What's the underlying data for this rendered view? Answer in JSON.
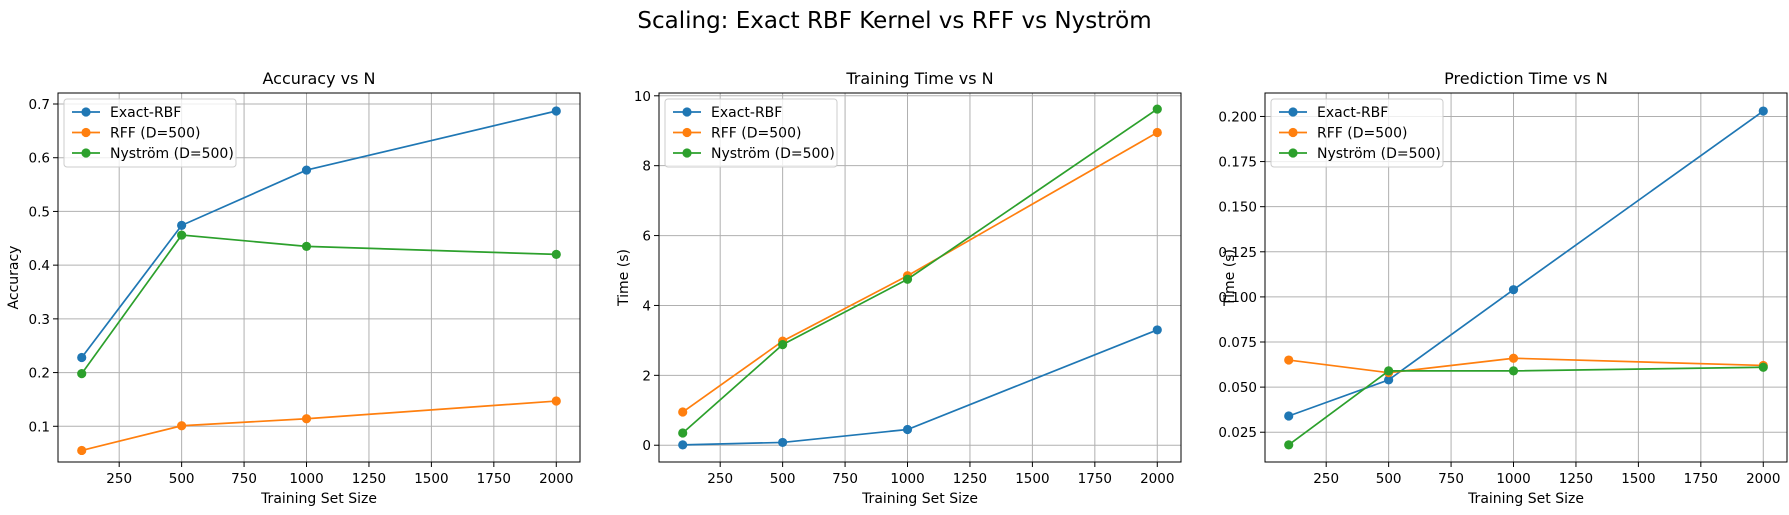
{
  "figure": {
    "title": "Scaling: Exact RBF Kernel vs RFF vs Nyström"
  },
  "colors": {
    "Exact-RBF": "#1f77b4",
    "RFF (D=500)": "#ff7f0e",
    "Nyström (D=500)": "#2ca02c"
  },
  "chart_data": [
    {
      "type": "line",
      "title": "Accuracy vs N",
      "xlabel": "Training Set Size",
      "ylabel": "Accuracy",
      "xlim": [
        5,
        2095
      ],
      "ylim": [
        0.0335,
        0.7205
      ],
      "xticks": [
        250,
        500,
        750,
        1000,
        1250,
        1500,
        1750,
        2000
      ],
      "xtick_labels": [
        "250",
        "500",
        "750",
        "1000",
        "1250",
        "1500",
        "1750",
        "2000"
      ],
      "yticks": [
        0.1,
        0.2,
        0.3,
        0.4,
        0.5,
        0.6,
        0.7
      ],
      "ytick_labels": [
        "0.1",
        "0.2",
        "0.3",
        "0.4",
        "0.5",
        "0.6",
        "0.7"
      ],
      "grid": true,
      "legend": "upper left",
      "x": [
        100,
        500,
        1000,
        2000
      ],
      "series": [
        {
          "name": "Exact-RBF",
          "values": [
            0.228,
            0.474,
            0.577,
            0.687
          ]
        },
        {
          "name": "RFF (D=500)",
          "values": [
            0.055,
            0.101,
            0.114,
            0.147
          ]
        },
        {
          "name": "Nyström (D=500)",
          "values": [
            0.198,
            0.456,
            0.435,
            0.42
          ]
        }
      ]
    },
    {
      "type": "line",
      "title": "Training Time vs N",
      "xlabel": "Training Set Size",
      "ylabel": "Time (s)",
      "xlim": [
        5,
        2095
      ],
      "ylim": [
        -0.48,
        10.08
      ],
      "xticks": [
        250,
        500,
        750,
        1000,
        1250,
        1500,
        1750,
        2000
      ],
      "xtick_labels": [
        "250",
        "500",
        "750",
        "1000",
        "1250",
        "1500",
        "1750",
        "2000"
      ],
      "yticks": [
        0,
        2,
        4,
        6,
        8,
        10
      ],
      "ytick_labels": [
        "0",
        "2",
        "4",
        "6",
        "8",
        "10"
      ],
      "grid": true,
      "legend": "upper left",
      "x": [
        100,
        500,
        1000,
        2000
      ],
      "series": [
        {
          "name": "Exact-RBF",
          "values": [
            0.01,
            0.08,
            0.45,
            3.3
          ]
        },
        {
          "name": "RFF (D=500)",
          "values": [
            0.95,
            2.98,
            4.85,
            8.95
          ]
        },
        {
          "name": "Nyström (D=500)",
          "values": [
            0.35,
            2.88,
            4.75,
            9.62
          ]
        }
      ]
    },
    {
      "type": "line",
      "title": "Prediction Time vs N",
      "xlabel": "Training Set Size",
      "ylabel": "Time (s)",
      "xlim": [
        5,
        2095
      ],
      "ylim": [
        0.0085,
        0.213
      ],
      "xticks": [
        250,
        500,
        750,
        1000,
        1250,
        1500,
        1750,
        2000
      ],
      "xtick_labels": [
        "250",
        "500",
        "750",
        "1000",
        "1250",
        "1500",
        "1750",
        "2000"
      ],
      "yticks": [
        0.025,
        0.05,
        0.075,
        0.1,
        0.125,
        0.15,
        0.175,
        0.2
      ],
      "ytick_labels": [
        "0.025",
        "0.050",
        "0.075",
        "0.100",
        "0.125",
        "0.150",
        "0.175",
        "0.200"
      ],
      "grid": true,
      "legend": "upper left",
      "x": [
        100,
        500,
        1000,
        2000
      ],
      "series": [
        {
          "name": "Exact-RBF",
          "values": [
            0.034,
            0.054,
            0.104,
            0.203
          ]
        },
        {
          "name": "RFF (D=500)",
          "values": [
            0.065,
            0.058,
            0.066,
            0.062
          ]
        },
        {
          "name": "Nyström (D=500)",
          "values": [
            0.018,
            0.059,
            0.059,
            0.061
          ]
        }
      ]
    }
  ]
}
